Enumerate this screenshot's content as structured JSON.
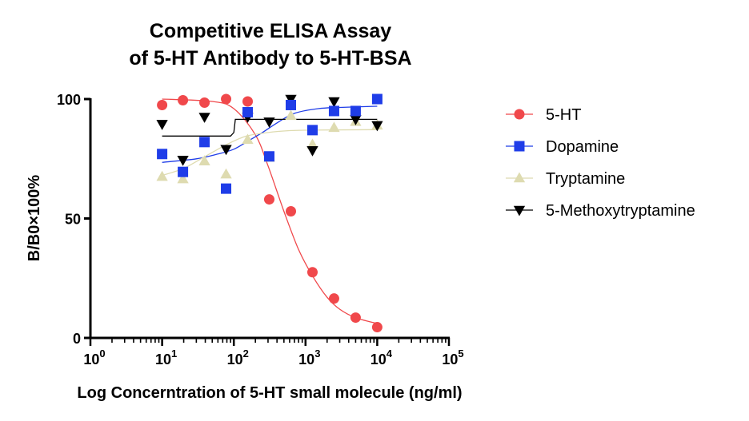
{
  "chart_data": {
    "type": "scatter",
    "title_lines": [
      "Competitive ELISA Assay",
      "of  5-HT Antibody to 5-HT-BSA"
    ],
    "xlabel": "Log Concerntration of 5-HT small molecule (ng/ml)",
    "ylabel": "B/B0×100%",
    "x_scale": "log",
    "xlim": [
      1,
      100000
    ],
    "ylim": [
      0,
      100
    ],
    "x_ticks": [
      {
        "base": "10",
        "exp": "0",
        "value": 1
      },
      {
        "base": "10",
        "exp": "1",
        "value": 10
      },
      {
        "base": "10",
        "exp": "2",
        "value": 100
      },
      {
        "base": "10",
        "exp": "3",
        "value": 1000
      },
      {
        "base": "10",
        "exp": "4",
        "value": 10000
      },
      {
        "base": "10",
        "exp": "5",
        "value": 100000
      }
    ],
    "y_ticks": [
      {
        "label": "0",
        "value": 0
      },
      {
        "label": "50",
        "value": 50
      },
      {
        "label": "100",
        "value": 100
      }
    ],
    "grid": false,
    "legend_position": "right",
    "series": [
      {
        "name": "5-HT",
        "marker": "circle",
        "color": "#f0484b",
        "line_color": "#f0484b",
        "x": [
          10,
          19.5,
          39,
          78,
          156,
          312,
          625,
          1250,
          2500,
          5000,
          10000
        ],
        "y": [
          97.5,
          99.5,
          98.5,
          100,
          99,
          58,
          53,
          27.5,
          16.5,
          8.5,
          4.5
        ],
        "fit": [
          {
            "x": 10,
            "y": 100
          },
          {
            "x": 50,
            "y": 99
          },
          {
            "x": 100,
            "y": 96
          },
          {
            "x": 200,
            "y": 85
          },
          {
            "x": 300,
            "y": 72
          },
          {
            "x": 500,
            "y": 53
          },
          {
            "x": 800,
            "y": 37
          },
          {
            "x": 1250,
            "y": 26
          },
          {
            "x": 2000,
            "y": 17
          },
          {
            "x": 3000,
            "y": 12
          },
          {
            "x": 5000,
            "y": 8.5
          },
          {
            "x": 10000,
            "y": 6
          }
        ]
      },
      {
        "name": "Dopamine",
        "marker": "square",
        "color": "#1f3de8",
        "line_color": "#1f3de8",
        "x": [
          10,
          19.5,
          39,
          78,
          156,
          312,
          625,
          1250,
          2500,
          5000,
          10000
        ],
        "y": [
          77,
          69.5,
          82,
          62.5,
          94.5,
          76,
          97.5,
          87,
          95,
          95,
          100
        ],
        "fit": [
          {
            "x": 10,
            "y": 73.5
          },
          {
            "x": 30,
            "y": 75
          },
          {
            "x": 60,
            "y": 77
          },
          {
            "x": 100,
            "y": 79
          },
          {
            "x": 150,
            "y": 82
          },
          {
            "x": 250,
            "y": 86
          },
          {
            "x": 400,
            "y": 90
          },
          {
            "x": 700,
            "y": 94
          },
          {
            "x": 1500,
            "y": 96
          },
          {
            "x": 3000,
            "y": 96.5
          },
          {
            "x": 10000,
            "y": 97
          }
        ]
      },
      {
        "name": "Tryptamine",
        "marker": "triangle-up",
        "color": "#dedbb0",
        "line_color": "#dedbb0",
        "x": [
          10,
          19.5,
          39,
          78,
          156,
          312,
          625,
          1250,
          2500,
          5000,
          10000
        ],
        "y": [
          67.5,
          66.5,
          74,
          68.5,
          83,
          75.5,
          93,
          81,
          88,
          90.5,
          89
        ],
        "fit": [
          {
            "x": 10,
            "y": 68
          },
          {
            "x": 20,
            "y": 71
          },
          {
            "x": 40,
            "y": 76
          },
          {
            "x": 80,
            "y": 81
          },
          {
            "x": 150,
            "y": 84.5
          },
          {
            "x": 300,
            "y": 86
          },
          {
            "x": 600,
            "y": 86.8
          },
          {
            "x": 1200,
            "y": 87
          },
          {
            "x": 10000,
            "y": 87.2
          }
        ]
      },
      {
        "name": "5-Methoxytryptamine",
        "marker": "triangle-down",
        "color": "#000000",
        "line_color": "#000000",
        "x": [
          10,
          19.5,
          39,
          78,
          156,
          312,
          625,
          1250,
          2500,
          5000,
          10000
        ],
        "y": [
          89.5,
          74.5,
          92.5,
          79,
          92.5,
          90.5,
          100,
          78.5,
          99,
          91.5,
          89
        ],
        "fit": [
          {
            "x": 10,
            "y": 84.5
          },
          {
            "x": 90,
            "y": 84.5
          },
          {
            "x": 100,
            "y": 86
          },
          {
            "x": 105,
            "y": 91.5
          },
          {
            "x": 10000,
            "y": 91.5
          }
        ]
      }
    ]
  }
}
